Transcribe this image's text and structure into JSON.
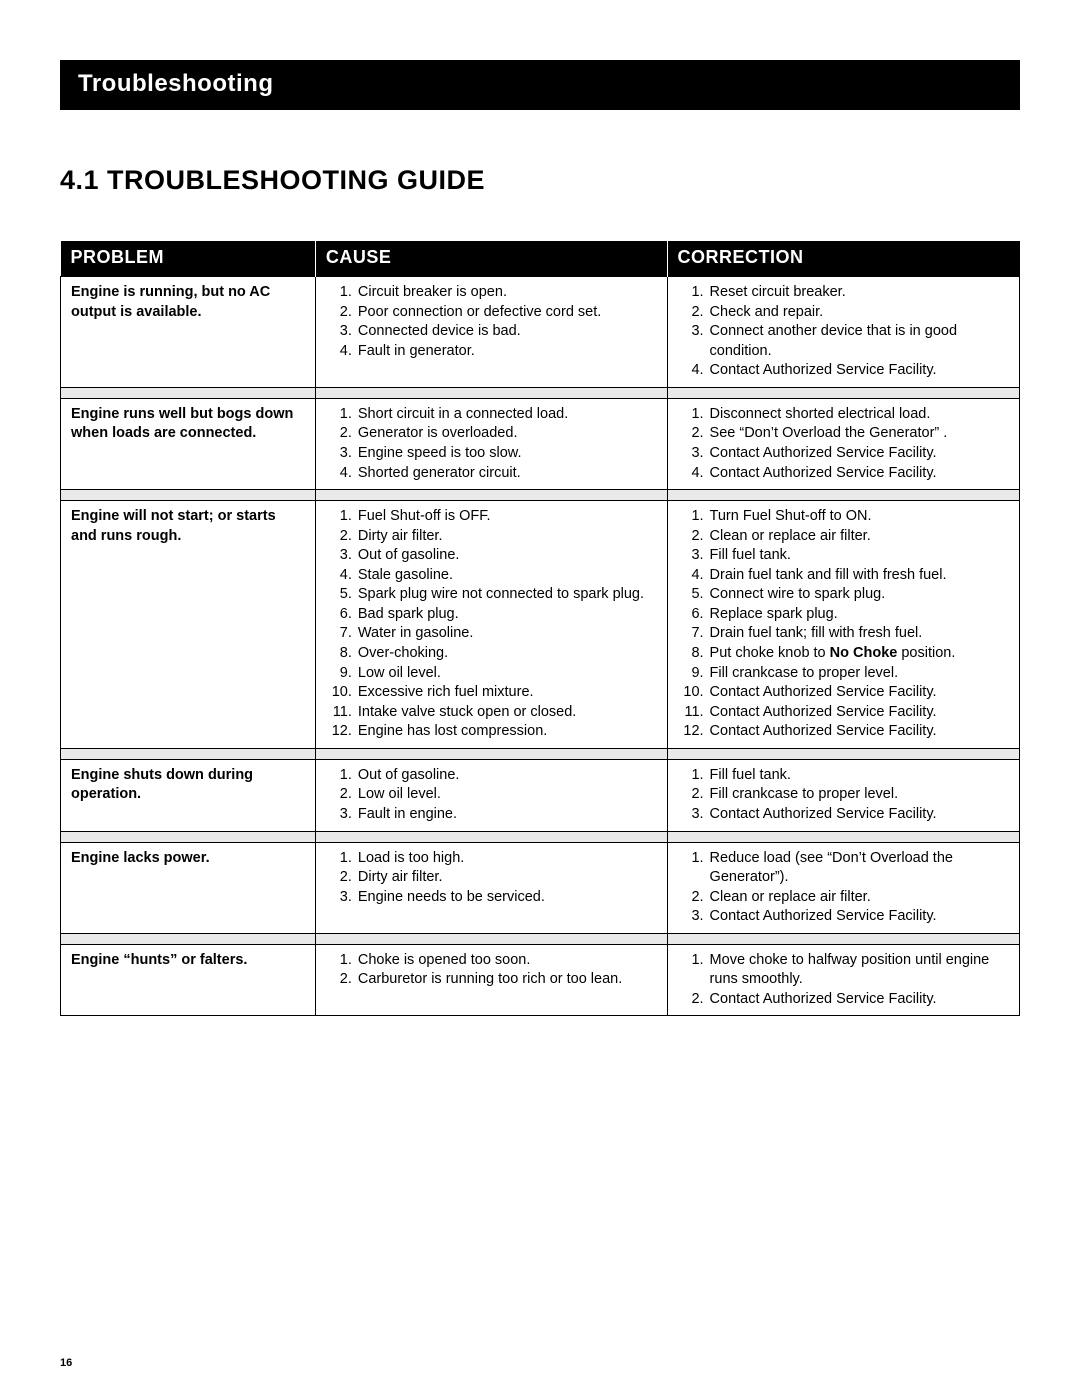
{
  "banner": "Troubleshooting",
  "section_title": "4.1 TROUBLESHOOTING GUIDE",
  "columns": {
    "problem": "PROBLEM",
    "cause": "CAUSE",
    "correction": "CORRECTION"
  },
  "page_number": "16",
  "rows": [
    {
      "problem": "Engine is running, but no AC output is available.",
      "causes": [
        "Circuit breaker is open.",
        "Poor connection or defective cord set.",
        "Connected device is bad.",
        "Fault in generator."
      ],
      "corrections": [
        "Reset circuit breaker.",
        "Check and repair.",
        "Connect another device that is in good condition.",
        "Contact Authorized Service Facility."
      ]
    },
    {
      "problem": "Engine runs well but bogs down when loads are connected.",
      "causes": [
        "Short circuit in a connected load.",
        "Generator is overloaded.",
        "Engine speed is too slow.",
        "Shorted generator circuit."
      ],
      "corrections": [
        "Disconnect shorted electrical load.",
        "See “Don’t Overload the Generator” .",
        "Contact Authorized Service Facility.",
        "Contact Authorized Service Facility."
      ]
    },
    {
      "problem": "Engine will not start; or starts and runs rough.",
      "causes": [
        "Fuel Shut-off is OFF.",
        "Dirty air filter.",
        "Out of gasoline.",
        "Stale gasoline.",
        "Spark plug wire not connected to spark plug.",
        "Bad spark plug.",
        "Water in gasoline.",
        "Over-choking.",
        "Low oil level.",
        "Excessive rich fuel mixture.",
        "Intake valve stuck open or closed.",
        "Engine has lost compression."
      ],
      "corrections": [
        "Turn Fuel Shut-off to ON.",
        "Clean or replace air filter.",
        "Fill fuel tank.",
        "Drain fuel tank and fill with fresh fuel.",
        "Connect wire to spark plug.",
        "Replace spark plug.",
        "Drain fuel tank; fill with fresh fuel.",
        "Put choke knob to <b>No Choke</b> position.",
        "Fill crankcase to proper level.",
        "Contact Authorized Service Facility.",
        "Contact Authorized Service Facility.",
        "Contact Authorized Service Facility."
      ]
    },
    {
      "problem": "Engine shuts down during operation.",
      "causes": [
        "Out of gasoline.",
        "Low oil level.",
        "Fault in engine."
      ],
      "corrections": [
        "Fill fuel tank.",
        "Fill crankcase to proper level.",
        "Contact Authorized Service Facility."
      ]
    },
    {
      "problem": "Engine lacks power.",
      "causes": [
        "Load is too high.",
        "Dirty air filter.",
        "Engine needs to be serviced."
      ],
      "corrections": [
        "Reduce load (see “Don’t Overload the Generator”).",
        "Clean or replace air filter.",
        "Contact Authorized Service Facility."
      ]
    },
    {
      "problem": "Engine “hunts” or falters.",
      "causes": [
        "Choke is opened too soon.",
        "Carburetor is running too rich or too lean."
      ],
      "corrections": [
        "Move choke to halfway position until engine runs smoothly.",
        "Contact Authorized Service Facility."
      ]
    }
  ]
}
